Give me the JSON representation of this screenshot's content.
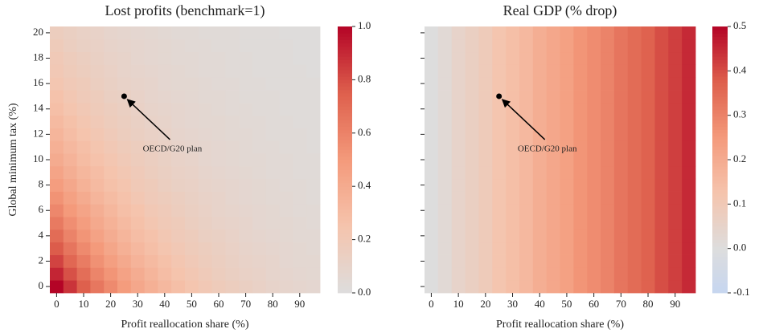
{
  "chart_data": [
    {
      "type": "heatmap",
      "title": "Lost profits (benchmark=1)",
      "x_label": "Profit reallocation share (%)",
      "y_label": "Global minimum tax (%)",
      "x": [
        0,
        5,
        10,
        15,
        20,
        25,
        30,
        35,
        40,
        45,
        50,
        55,
        60,
        65,
        70,
        75,
        80,
        85,
        90,
        95
      ],
      "y": [
        0,
        1,
        2,
        3,
        4,
        5,
        6,
        7,
        8,
        9,
        10,
        11,
        12,
        13,
        14,
        15,
        16,
        17,
        18,
        19,
        20
      ],
      "xticks": [
        0,
        10,
        20,
        30,
        40,
        50,
        60,
        70,
        80,
        90
      ],
      "yticks": [
        0,
        2,
        4,
        6,
        8,
        10,
        12,
        14,
        16,
        18,
        20
      ],
      "ytick_labels": true,
      "colormap": "coolwarm",
      "center": 0,
      "clim": [
        0,
        1
      ],
      "cticks": [
        {
          "value": 0,
          "label": "0.0"
        },
        0.2,
        0.4,
        0.6,
        0.8,
        {
          "value": 1,
          "label": "1.0"
        }
      ],
      "z": [
        [
          1.0,
          0.87,
          0.75,
          0.65,
          0.57,
          0.49,
          0.42,
          0.37,
          0.32,
          0.28,
          0.24,
          0.21,
          0.18,
          0.16,
          0.14,
          0.12,
          0.1,
          0.09,
          0.08,
          0.07
        ],
        [
          0.91,
          0.79,
          0.69,
          0.59,
          0.52,
          0.45,
          0.39,
          0.34,
          0.29,
          0.25,
          0.22,
          0.19,
          0.16,
          0.14,
          0.12,
          0.11,
          0.09,
          0.08,
          0.07,
          0.06
        ],
        [
          0.83,
          0.72,
          0.63,
          0.54,
          0.47,
          0.41,
          0.35,
          0.31,
          0.27,
          0.23,
          0.2,
          0.17,
          0.15,
          0.13,
          0.11,
          0.1,
          0.09,
          0.07,
          0.06,
          0.06
        ],
        [
          0.76,
          0.66,
          0.57,
          0.5,
          0.43,
          0.37,
          0.32,
          0.28,
          0.24,
          0.21,
          0.18,
          0.16,
          0.14,
          0.12,
          0.1,
          0.09,
          0.08,
          0.07,
          0.06,
          0.05
        ],
        [
          0.7,
          0.6,
          0.52,
          0.45,
          0.39,
          0.34,
          0.29,
          0.26,
          0.22,
          0.19,
          0.17,
          0.14,
          0.13,
          0.11,
          0.09,
          0.08,
          0.07,
          0.06,
          0.05,
          0.05
        ],
        [
          0.64,
          0.55,
          0.48,
          0.41,
          0.36,
          0.31,
          0.27,
          0.23,
          0.2,
          0.18,
          0.15,
          0.13,
          0.11,
          0.1,
          0.09,
          0.07,
          0.06,
          0.06,
          0.05,
          0.04
        ],
        [
          0.58,
          0.5,
          0.44,
          0.38,
          0.33,
          0.28,
          0.25,
          0.21,
          0.19,
          0.16,
          0.14,
          0.12,
          0.1,
          0.09,
          0.08,
          0.07,
          0.06,
          0.05,
          0.04,
          0.04
        ],
        [
          0.53,
          0.46,
          0.4,
          0.34,
          0.3,
          0.26,
          0.22,
          0.19,
          0.17,
          0.15,
          0.13,
          0.11,
          0.1,
          0.08,
          0.07,
          0.06,
          0.05,
          0.05,
          0.04,
          0.03
        ],
        [
          0.48,
          0.42,
          0.36,
          0.31,
          0.27,
          0.24,
          0.2,
          0.18,
          0.15,
          0.13,
          0.12,
          0.1,
          0.09,
          0.08,
          0.07,
          0.06,
          0.05,
          0.04,
          0.04,
          0.03
        ],
        [
          0.44,
          0.38,
          0.33,
          0.29,
          0.25,
          0.22,
          0.19,
          0.16,
          0.14,
          0.12,
          0.11,
          0.09,
          0.08,
          0.07,
          0.06,
          0.05,
          0.04,
          0.04,
          0.03,
          0.03
        ],
        [
          0.4,
          0.35,
          0.3,
          0.26,
          0.23,
          0.2,
          0.17,
          0.15,
          0.13,
          0.11,
          0.1,
          0.08,
          0.07,
          0.06,
          0.05,
          0.05,
          0.04,
          0.04,
          0.03,
          0.03
        ],
        [
          0.37,
          0.32,
          0.28,
          0.24,
          0.21,
          0.18,
          0.16,
          0.14,
          0.12,
          0.1,
          0.09,
          0.08,
          0.07,
          0.06,
          0.05,
          0.04,
          0.04,
          0.03,
          0.03,
          0.02
        ],
        [
          0.34,
          0.29,
          0.25,
          0.22,
          0.19,
          0.16,
          0.14,
          0.12,
          0.11,
          0.09,
          0.08,
          0.07,
          0.06,
          0.05,
          0.05,
          0.04,
          0.03,
          0.03,
          0.03,
          0.02
        ],
        [
          0.31,
          0.27,
          0.23,
          0.2,
          0.17,
          0.15,
          0.13,
          0.11,
          0.1,
          0.08,
          0.07,
          0.06,
          0.06,
          0.05,
          0.04,
          0.04,
          0.03,
          0.03,
          0.02,
          0.02
        ],
        [
          0.28,
          0.24,
          0.21,
          0.18,
          0.16,
          0.14,
          0.12,
          0.1,
          0.09,
          0.08,
          0.07,
          0.06,
          0.05,
          0.04,
          0.04,
          0.03,
          0.03,
          0.02,
          0.02,
          0.02
        ],
        [
          0.26,
          0.22,
          0.19,
          0.17,
          0.14,
          0.13,
          0.11,
          0.09,
          0.08,
          0.07,
          0.06,
          0.05,
          0.05,
          0.04,
          0.03,
          0.03,
          0.03,
          0.02,
          0.02,
          0.02
        ],
        [
          0.23,
          0.2,
          0.18,
          0.15,
          0.13,
          0.11,
          0.1,
          0.09,
          0.07,
          0.06,
          0.06,
          0.05,
          0.04,
          0.04,
          0.03,
          0.03,
          0.02,
          0.02,
          0.02,
          0.02
        ],
        [
          0.21,
          0.18,
          0.16,
          0.14,
          0.12,
          0.1,
          0.09,
          0.08,
          0.07,
          0.06,
          0.05,
          0.04,
          0.04,
          0.03,
          0.03,
          0.02,
          0.02,
          0.02,
          0.02,
          0.01
        ],
        [
          0.2,
          0.17,
          0.15,
          0.13,
          0.11,
          0.1,
          0.08,
          0.07,
          0.06,
          0.05,
          0.05,
          0.04,
          0.04,
          0.03,
          0.03,
          0.02,
          0.02,
          0.02,
          0.01,
          0.01
        ],
        [
          0.18,
          0.15,
          0.13,
          0.12,
          0.1,
          0.09,
          0.08,
          0.07,
          0.06,
          0.05,
          0.04,
          0.04,
          0.03,
          0.03,
          0.02,
          0.02,
          0.02,
          0.02,
          0.01,
          0.01
        ],
        [
          0.16,
          0.14,
          0.12,
          0.11,
          0.09,
          0.08,
          0.07,
          0.06,
          0.05,
          0.04,
          0.04,
          0.03,
          0.03,
          0.03,
          0.02,
          0.02,
          0.02,
          0.01,
          0.01,
          0.01
        ]
      ],
      "annotation": {
        "text": "OECD/G20 plan",
        "xy": [
          25,
          15
        ]
      }
    },
    {
      "type": "heatmap",
      "title": "Real GDP (% drop)",
      "x_label": "Profit reallocation share (%)",
      "x": [
        0,
        5,
        10,
        15,
        20,
        25,
        30,
        35,
        40,
        45,
        50,
        55,
        60,
        65,
        70,
        75,
        80,
        85,
        90,
        95
      ],
      "y": [
        0,
        1,
        2,
        3,
        4,
        5,
        6,
        7,
        8,
        9,
        10,
        11,
        12,
        13,
        14,
        15,
        16,
        17,
        18,
        19,
        20
      ],
      "xticks": [
        0,
        10,
        20,
        30,
        40,
        50,
        60,
        70,
        80,
        90
      ],
      "yticks": [
        0,
        2,
        4,
        6,
        8,
        10,
        12,
        14,
        16,
        18,
        20
      ],
      "ytick_labels": false,
      "colormap": "coolwarm",
      "center": 0,
      "clim": [
        -0.1,
        0.5
      ],
      "cticks": [
        -0.1,
        {
          "value": 0,
          "label": "0.0"
        },
        0.1,
        0.2,
        0.3,
        0.4,
        0.5
      ],
      "z": [
        [
          0.0,
          0.02,
          0.05,
          0.07,
          0.09,
          0.12,
          0.14,
          0.16,
          0.19,
          0.21,
          0.23,
          0.26,
          0.28,
          0.3,
          0.33,
          0.35,
          0.37,
          0.4,
          0.42,
          0.45
        ],
        [
          0.0,
          0.02,
          0.05,
          0.07,
          0.09,
          0.12,
          0.14,
          0.16,
          0.19,
          0.21,
          0.23,
          0.26,
          0.28,
          0.3,
          0.33,
          0.35,
          0.37,
          0.4,
          0.42,
          0.45
        ],
        [
          0.0,
          0.02,
          0.05,
          0.07,
          0.09,
          0.12,
          0.14,
          0.16,
          0.19,
          0.21,
          0.23,
          0.26,
          0.28,
          0.3,
          0.33,
          0.35,
          0.37,
          0.4,
          0.42,
          0.45
        ],
        [
          0.0,
          0.02,
          0.05,
          0.07,
          0.09,
          0.12,
          0.14,
          0.16,
          0.19,
          0.21,
          0.23,
          0.26,
          0.28,
          0.3,
          0.33,
          0.35,
          0.37,
          0.4,
          0.42,
          0.45
        ],
        [
          0.0,
          0.02,
          0.05,
          0.07,
          0.09,
          0.12,
          0.14,
          0.16,
          0.19,
          0.21,
          0.23,
          0.26,
          0.28,
          0.3,
          0.33,
          0.35,
          0.37,
          0.4,
          0.42,
          0.45
        ],
        [
          0.0,
          0.02,
          0.05,
          0.07,
          0.09,
          0.12,
          0.14,
          0.16,
          0.19,
          0.21,
          0.23,
          0.26,
          0.28,
          0.3,
          0.33,
          0.35,
          0.37,
          0.4,
          0.42,
          0.45
        ],
        [
          0.0,
          0.02,
          0.05,
          0.07,
          0.09,
          0.12,
          0.14,
          0.16,
          0.19,
          0.21,
          0.23,
          0.26,
          0.28,
          0.3,
          0.33,
          0.35,
          0.37,
          0.4,
          0.42,
          0.45
        ],
        [
          0.0,
          0.02,
          0.05,
          0.07,
          0.09,
          0.12,
          0.14,
          0.16,
          0.19,
          0.21,
          0.23,
          0.26,
          0.28,
          0.3,
          0.33,
          0.35,
          0.37,
          0.4,
          0.42,
          0.45
        ],
        [
          0.0,
          0.02,
          0.05,
          0.07,
          0.09,
          0.12,
          0.14,
          0.16,
          0.19,
          0.21,
          0.23,
          0.26,
          0.28,
          0.3,
          0.33,
          0.35,
          0.37,
          0.4,
          0.42,
          0.45
        ],
        [
          0.0,
          0.02,
          0.05,
          0.07,
          0.09,
          0.12,
          0.14,
          0.16,
          0.19,
          0.21,
          0.23,
          0.26,
          0.28,
          0.3,
          0.33,
          0.35,
          0.37,
          0.4,
          0.42,
          0.45
        ],
        [
          0.0,
          0.02,
          0.05,
          0.07,
          0.09,
          0.12,
          0.14,
          0.16,
          0.19,
          0.21,
          0.23,
          0.26,
          0.28,
          0.3,
          0.33,
          0.35,
          0.37,
          0.4,
          0.42,
          0.45
        ],
        [
          0.0,
          0.02,
          0.05,
          0.07,
          0.09,
          0.12,
          0.14,
          0.16,
          0.19,
          0.21,
          0.23,
          0.26,
          0.28,
          0.3,
          0.33,
          0.35,
          0.37,
          0.4,
          0.42,
          0.45
        ],
        [
          0.0,
          0.02,
          0.05,
          0.07,
          0.09,
          0.12,
          0.14,
          0.16,
          0.19,
          0.21,
          0.23,
          0.26,
          0.28,
          0.3,
          0.33,
          0.35,
          0.37,
          0.4,
          0.42,
          0.45
        ],
        [
          0.0,
          0.02,
          0.05,
          0.07,
          0.09,
          0.12,
          0.14,
          0.16,
          0.19,
          0.21,
          0.23,
          0.26,
          0.28,
          0.3,
          0.33,
          0.35,
          0.37,
          0.4,
          0.42,
          0.45
        ],
        [
          0.0,
          0.02,
          0.05,
          0.07,
          0.09,
          0.12,
          0.14,
          0.16,
          0.19,
          0.21,
          0.23,
          0.26,
          0.28,
          0.3,
          0.33,
          0.35,
          0.37,
          0.4,
          0.42,
          0.45
        ],
        [
          0.0,
          0.02,
          0.05,
          0.07,
          0.09,
          0.12,
          0.14,
          0.16,
          0.19,
          0.21,
          0.23,
          0.26,
          0.28,
          0.3,
          0.33,
          0.35,
          0.37,
          0.4,
          0.42,
          0.45
        ],
        [
          0.0,
          0.02,
          0.05,
          0.07,
          0.09,
          0.12,
          0.14,
          0.16,
          0.19,
          0.21,
          0.23,
          0.26,
          0.28,
          0.3,
          0.33,
          0.35,
          0.37,
          0.4,
          0.42,
          0.45
        ],
        [
          0.0,
          0.02,
          0.05,
          0.07,
          0.09,
          0.12,
          0.14,
          0.16,
          0.19,
          0.21,
          0.23,
          0.26,
          0.28,
          0.3,
          0.33,
          0.35,
          0.37,
          0.4,
          0.42,
          0.45
        ],
        [
          0.0,
          0.02,
          0.05,
          0.07,
          0.09,
          0.12,
          0.14,
          0.16,
          0.19,
          0.21,
          0.23,
          0.26,
          0.28,
          0.3,
          0.33,
          0.35,
          0.37,
          0.4,
          0.42,
          0.45
        ],
        [
          0.0,
          0.02,
          0.05,
          0.07,
          0.09,
          0.12,
          0.14,
          0.16,
          0.19,
          0.21,
          0.23,
          0.26,
          0.28,
          0.3,
          0.33,
          0.35,
          0.37,
          0.4,
          0.42,
          0.45
        ],
        [
          0.0,
          0.02,
          0.05,
          0.07,
          0.09,
          0.12,
          0.14,
          0.16,
          0.19,
          0.21,
          0.23,
          0.26,
          0.28,
          0.3,
          0.33,
          0.35,
          0.37,
          0.4,
          0.42,
          0.45
        ]
      ],
      "annotation": {
        "text": "OECD/G20 plan",
        "xy": [
          25,
          15
        ]
      }
    }
  ]
}
